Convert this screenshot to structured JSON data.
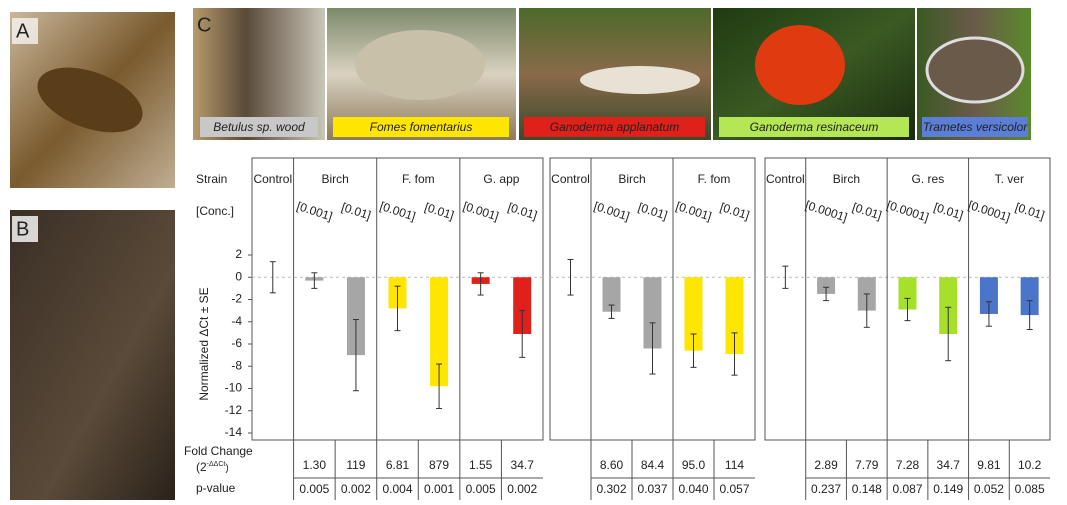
{
  "panel_labels": [
    "A",
    "B",
    "C"
  ],
  "captions": [
    {
      "text": "Betulus sp. wood",
      "color": "#c8c8c8"
    },
    {
      "text": "Fomes fomentarius",
      "color": "#ffe600"
    },
    {
      "text": "Ganoderma applanatum",
      "color": "#e0201a"
    },
    {
      "text": "Ganoderma resinaceum",
      "color": "#b5e655"
    },
    {
      "text": "Trametes versicolor",
      "color": "#5b7fd6"
    }
  ],
  "row_labels": {
    "strain": "Strain",
    "conc": "[Conc.]",
    "fold_change": "Fold Change",
    "fold_base": "(2",
    "fold_exp": "-ΔΔCt",
    "fold_close": ")",
    "p_value": "p-value"
  },
  "chart_data": [
    {
      "type": "bar",
      "ylabel": "Normalized ΔCt ± SE",
      "ylim": [
        -14,
        2
      ],
      "yticks": [
        2,
        0,
        -2,
        -4,
        -6,
        -8,
        -10,
        -12,
        -14
      ],
      "groups": [
        {
          "name": "Control",
          "bars": [
            {
              "conc": null,
              "value": 0,
              "error": 1.4,
              "color": "#a6a6a6",
              "fold_change": null,
              "p_value": null
            }
          ]
        },
        {
          "name": "Birch",
          "bars": [
            {
              "conc": "[0.001]",
              "value": -0.3,
              "error": 0.7,
              "color": "#a6a6a6",
              "fold_change": "1.30",
              "p_value": "0.005"
            },
            {
              "conc": "[0.01]",
              "value": -7.0,
              "error": 3.2,
              "color": "#a6a6a6",
              "fold_change": "119",
              "p_value": "0.002"
            }
          ]
        },
        {
          "name": "F. fom",
          "bars": [
            {
              "conc": "[0.001]",
              "value": -2.8,
              "error": 2.0,
              "color": "#ffe600",
              "fold_change": "6.81",
              "p_value": "0.004"
            },
            {
              "conc": "[0.01]",
              "value": -9.8,
              "error": 2.0,
              "color": "#ffe600",
              "fold_change": "879",
              "p_value": "0.001"
            }
          ]
        },
        {
          "name": "G. app",
          "bars": [
            {
              "conc": "[0.001]",
              "value": -0.6,
              "error": 1.0,
              "color": "#e0201a",
              "fold_change": "1.55",
              "p_value": "0.005"
            },
            {
              "conc": "[0.01]",
              "value": -5.1,
              "error": 2.1,
              "color": "#e0201a",
              "fold_change": "34.7",
              "p_value": "0.002"
            }
          ]
        }
      ]
    },
    {
      "type": "bar",
      "ylim": [
        -14,
        2
      ],
      "groups": [
        {
          "name": "Control",
          "bars": [
            {
              "conc": null,
              "value": 0,
              "error": 1.6,
              "color": "#a6a6a6",
              "fold_change": null,
              "p_value": null
            }
          ]
        },
        {
          "name": "Birch",
          "bars": [
            {
              "conc": "[0.001]",
              "value": -3.1,
              "error": 0.6,
              "color": "#a6a6a6",
              "fold_change": "8.60",
              "p_value": "0.302"
            },
            {
              "conc": "[0.01]",
              "value": -6.4,
              "error": 2.3,
              "color": "#a6a6a6",
              "fold_change": "84.4",
              "p_value": "0.037"
            }
          ]
        },
        {
          "name": "F. fom",
          "bars": [
            {
              "conc": "[0.001]",
              "value": -6.6,
              "error": 1.5,
              "color": "#ffe600",
              "fold_change": "95.0",
              "p_value": "0.040"
            },
            {
              "conc": "[0.01]",
              "value": -6.9,
              "error": 1.9,
              "color": "#ffe600",
              "fold_change": "114",
              "p_value": "0.057"
            }
          ]
        }
      ]
    },
    {
      "type": "bar",
      "ylim": [
        -14,
        2
      ],
      "groups": [
        {
          "name": "Control",
          "bars": [
            {
              "conc": null,
              "value": 0,
              "error": 1.0,
              "color": "#a6a6a6",
              "fold_change": null,
              "p_value": null
            }
          ]
        },
        {
          "name": "Birch",
          "bars": [
            {
              "conc": "[0.0001]",
              "value": -1.5,
              "error": 0.6,
              "color": "#a6a6a6",
              "fold_change": "2.89",
              "p_value": "0.237"
            },
            {
              "conc": "[0.01]",
              "value": -3.0,
              "error": 1.5,
              "color": "#a6a6a6",
              "fold_change": "7.79",
              "p_value": "0.148"
            }
          ]
        },
        {
          "name": "G. res",
          "bars": [
            {
              "conc": "[0.0001]",
              "value": -2.9,
              "error": 1.0,
              "color": "#a6e02a",
              "fold_change": "7.28",
              "p_value": "0.087"
            },
            {
              "conc": "[0.01]",
              "value": -5.1,
              "error": 2.4,
              "color": "#a6e02a",
              "fold_change": "34.7",
              "p_value": "0.149"
            }
          ]
        },
        {
          "name": "T. ver",
          "bars": [
            {
              "conc": "[0.0001]",
              "value": -3.3,
              "error": 1.1,
              "color": "#4a75c9",
              "fold_change": "9.81",
              "p_value": "0.052"
            },
            {
              "conc": "[0.01]",
              "value": -3.4,
              "error": 1.3,
              "color": "#4a75c9",
              "fold_change": "10.2",
              "p_value": "0.085"
            }
          ]
        }
      ]
    }
  ]
}
